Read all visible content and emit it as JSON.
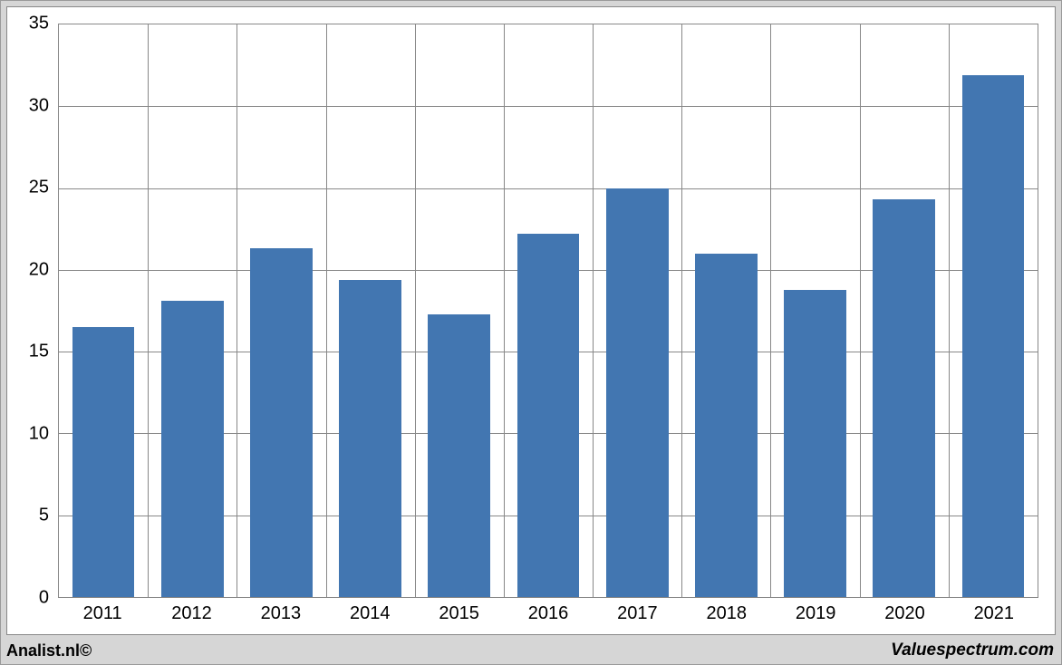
{
  "chart": {
    "type": "bar",
    "categories": [
      "2011",
      "2012",
      "2013",
      "2014",
      "2015",
      "2016",
      "2017",
      "2018",
      "2019",
      "2020",
      "2021"
    ],
    "values": [
      16.5,
      18.1,
      21.3,
      19.4,
      17.3,
      22.2,
      25.0,
      21.0,
      18.8,
      24.3,
      31.9
    ],
    "bar_color": "#4276b1",
    "background_color": "#ffffff",
    "grid_color": "#888888",
    "outer_background": "#d6d6d6",
    "ylim": [
      0,
      35
    ],
    "ytick_step": 5,
    "yticks": [
      0,
      5,
      10,
      15,
      20,
      25,
      30,
      35
    ],
    "bar_width_ratio": 0.7,
    "axis_fontsize": 20,
    "footer_left": "Analist.nl©",
    "footer_right": "Valuespectrum.com"
  }
}
